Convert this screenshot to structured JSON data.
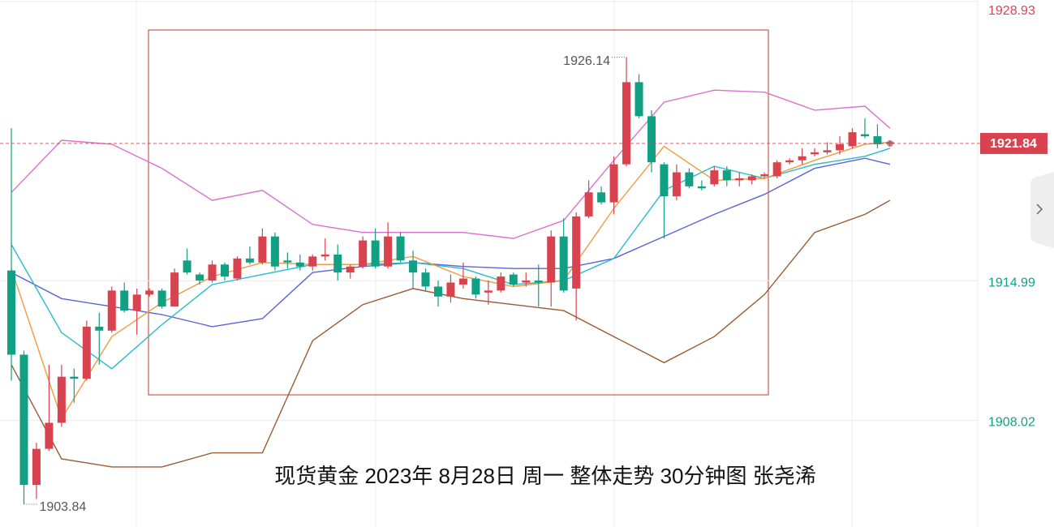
{
  "chart_data": {
    "type": "candlestick",
    "title": "现货黄金 2023年 8月28日 周一 整体走势  30分钟图  张尧浠",
    "open": [
      1915.5,
      1911.3,
      1904.8,
      1906.6,
      1907.9,
      1910.2,
      1910.1,
      1912.7,
      1912.5,
      1914.5,
      1913.5,
      1914.3,
      1914.5,
      1913.7,
      1916.0,
      1915.3,
      1915.0,
      1915.8,
      1915.1,
      1916.1,
      1915.9,
      1917.2,
      1916.0,
      1915.9,
      1915.7,
      1916.2,
      1916.3,
      1915.4,
      1915.7,
      1917.0,
      1915.7,
      1917.2,
      1916.0,
      1915.4,
      1914.7,
      1914.2,
      1914.8,
      1915.1,
      1914.4,
      1914.5,
      1915.3,
      1914.9,
      1915.0,
      1914.9,
      1917.2,
      1914.6,
      1918.2,
      1919.4,
      1918.9,
      1920.8,
      1924.9,
      1923.2,
      1920.8,
      1919.2,
      1920.4,
      1919.7,
      1919.8,
      1920.5,
      1920.0,
      1920.0,
      1920.2,
      1920.2,
      1920.9,
      1921.0,
      1921.3,
      1921.4,
      1921.5,
      1921.7,
      1922.3,
      1922.2,
      1921.9
    ],
    "close": [
      1911.3,
      1904.8,
      1906.6,
      1907.9,
      1910.2,
      1910.1,
      1912.7,
      1912.5,
      1914.5,
      1913.5,
      1914.3,
      1914.5,
      1913.7,
      1915.4,
      1915.4,
      1915.0,
      1915.8,
      1915.2,
      1916.1,
      1915.9,
      1917.2,
      1915.7,
      1915.9,
      1915.7,
      1916.2,
      1916.3,
      1915.4,
      1915.7,
      1917.0,
      1915.7,
      1917.2,
      1916.0,
      1915.4,
      1914.7,
      1914.2,
      1914.9,
      1915.1,
      1914.3,
      1914.5,
      1915.2,
      1914.8,
      1915.0,
      1914.9,
      1917.2,
      1914.5,
      1918.2,
      1919.4,
      1918.9,
      1920.8,
      1924.9,
      1923.2,
      1920.9,
      1919.2,
      1920.4,
      1919.7,
      1919.6,
      1920.5,
      1920.0,
      1920.1,
      1920.2,
      1920.3,
      1920.9,
      1921.0,
      1921.2,
      1921.4,
      1921.5,
      1921.8,
      1922.4,
      1922.2,
      1921.8,
      1921.84
    ],
    "high": [
      1922.6,
      1911.5,
      1906.9,
      1910.8,
      1910.8,
      1910.6,
      1913.0,
      1913.4,
      1914.7,
      1914.9,
      1914.6,
      1914.6,
      1914.6,
      1915.6,
      1916.6,
      1915.4,
      1916.0,
      1915.9,
      1916.2,
      1916.7,
      1917.6,
      1917.4,
      1916.4,
      1916.3,
      1916.3,
      1917.1,
      1916.8,
      1915.8,
      1917.2,
      1917.6,
      1917.9,
      1917.4,
      1916.5,
      1915.6,
      1915.0,
      1915.3,
      1915.9,
      1915.2,
      1915.0,
      1915.4,
      1915.4,
      1915.4,
      1915.8,
      1917.5,
      1918.1,
      1918.4,
      1920.0,
      1919.7,
      1921.2,
      1926.14,
      1925.3,
      1923.5,
      1920.9,
      1920.8,
      1920.6,
      1920.0,
      1920.7,
      1920.7,
      1920.4,
      1920.3,
      1920.4,
      1921.0,
      1921.1,
      1921.6,
      1921.6,
      1921.9,
      1922.2,
      1922.6,
      1923.1,
      1922.8,
      1922.0
    ],
    "low": [
      1910.0,
      1903.84,
      1904.1,
      1906.5,
      1907.7,
      1908.9,
      1910.0,
      1910.8,
      1912.4,
      1913.4,
      1912.3,
      1914.2,
      1913.6,
      1913.7,
      1915.3,
      1914.8,
      1914.9,
      1915.0,
      1915.0,
      1915.8,
      1915.8,
      1915.5,
      1915.6,
      1915.5,
      1915.5,
      1916.0,
      1915.0,
      1915.1,
      1915.6,
      1915.6,
      1915.6,
      1915.9,
      1914.6,
      1914.5,
      1913.7,
      1913.9,
      1914.6,
      1914.1,
      1913.8,
      1914.4,
      1914.7,
      1914.7,
      1913.7,
      1913.7,
      1914.4,
      1913.0,
      1918.1,
      1918.8,
      1918.3,
      1920.7,
      1923.1,
      1920.4,
      1917.1,
      1919.0,
      1919.6,
      1919.5,
      1919.7,
      1919.7,
      1919.7,
      1919.8,
      1920.1,
      1920.1,
      1920.8,
      1920.8,
      1921.2,
      1921.3,
      1921.3,
      1921.6,
      1922.1,
      1921.6,
      1921.7
    ],
    "up_color": "#d9434f",
    "down_color": "#12a085",
    "lines": [
      {
        "color": "#dd6fd0",
        "x": [
          0,
          4,
          8,
          12,
          16,
          20,
          24,
          28,
          32,
          36,
          40,
          44,
          48,
          52,
          56,
          60,
          64,
          68,
          70
        ],
        "values": [
          1919.4,
          1922.0,
          1921.8,
          1920.6,
          1919.0,
          1919.5,
          1917.8,
          1917.4,
          1917.4,
          1917.4,
          1917.1,
          1918.0,
          1921.0,
          1923.9,
          1924.5,
          1924.4,
          1923.5,
          1923.7,
          1922.6
        ]
      },
      {
        "color": "#9a5a34",
        "x": [
          0,
          4,
          8,
          12,
          16,
          20,
          24,
          28,
          32,
          36,
          40,
          44,
          48,
          52,
          56,
          60,
          64,
          68,
          70
        ],
        "values": [
          1910.8,
          1906.1,
          1905.7,
          1905.7,
          1906.4,
          1906.4,
          1912.0,
          1913.8,
          1914.6,
          1914.1,
          1913.8,
          1913.5,
          1912.2,
          1910.9,
          1912.2,
          1914.3,
          1917.4,
          1918.3,
          1919.0
        ]
      },
      {
        "color": "#5a63d8",
        "x": [
          0,
          4,
          8,
          12,
          16,
          20,
          24,
          28,
          32,
          36,
          40,
          44,
          48,
          52,
          56,
          60,
          64,
          68,
          70
        ],
        "values": [
          1915.4,
          1914.1,
          1913.7,
          1913.3,
          1912.7,
          1913.1,
          1915.4,
          1915.7,
          1915.9,
          1915.7,
          1915.6,
          1915.6,
          1916.1,
          1917.2,
          1918.3,
          1919.3,
          1920.6,
          1921.1,
          1920.8
        ]
      },
      {
        "color": "#25bcd0",
        "x": [
          0,
          4,
          8,
          12,
          16,
          20,
          24,
          28,
          32,
          36,
          40,
          44,
          48,
          52,
          56,
          60,
          64,
          68,
          70
        ],
        "values": [
          1916.8,
          1912.4,
          1910.6,
          1912.8,
          1914.8,
          1915.3,
          1915.8,
          1915.8,
          1915.9,
          1915.6,
          1914.8,
          1915.0,
          1916.1,
          1919.5,
          1920.7,
          1920.1,
          1920.8,
          1921.2,
          1921.6
        ]
      },
      {
        "color": "#f29a3c",
        "x": [
          0,
          4,
          8,
          12,
          16,
          20,
          24,
          28,
          32,
          36,
          40,
          44,
          48,
          52,
          56,
          60,
          64,
          68,
          70
        ],
        "values": [
          1915.6,
          1908.1,
          1912.2,
          1913.9,
          1915.2,
          1915.9,
          1915.8,
          1915.8,
          1916.2,
          1915.2,
          1914.7,
          1915.0,
          1918.6,
          1921.7,
          1920.0,
          1920.1,
          1921.0,
          1921.8,
          1921.9
        ]
      }
    ],
    "last_price": 1921.84,
    "ylim": [
      1902.7,
      1929.0
    ],
    "yticks": [
      1908.02,
      1914.99,
      1928.93
    ],
    "grid": true
  }
}
